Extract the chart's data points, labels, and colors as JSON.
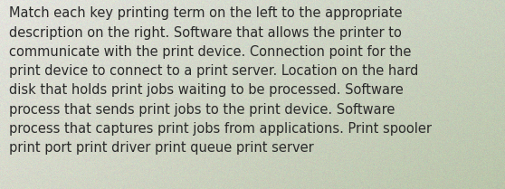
{
  "text_lines": [
    "Match each key printing term on the left to the appropriate",
    "description on the right. Software that allows the printer to",
    "communicate with the print device. Connection point for the",
    "print device to connect to a print server. Location on the hard",
    "disk that holds print jobs waiting to be processed. Software",
    "process that sends print jobs to the print device. Software",
    "process that captures print jobs from applications. Print spooler",
    "print port print driver print queue print server"
  ],
  "text_color": "#2a2a2a",
  "font_size": 10.5,
  "fig_width": 5.58,
  "fig_height": 2.09,
  "dpi": 100
}
